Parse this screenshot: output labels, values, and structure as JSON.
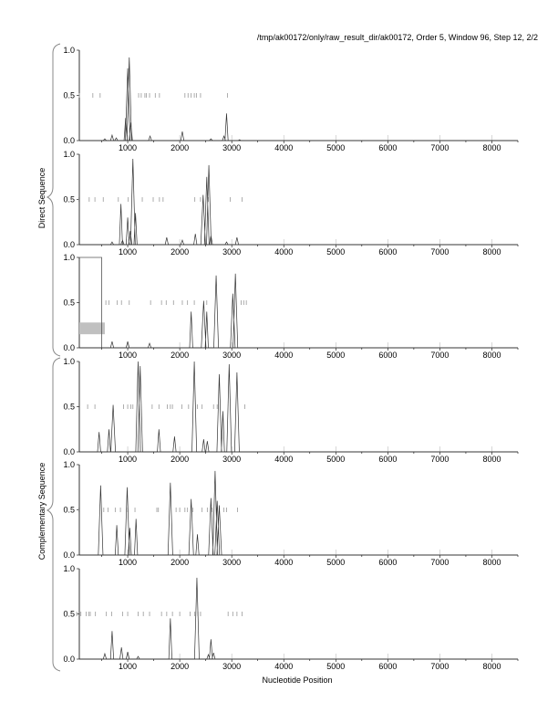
{
  "title": "/tmp/ak00172/only/raw_result_dir/ak00172, Order 5, Window 96, Step 12, 2/2",
  "group_labels": {
    "direct": "Direct Sequence",
    "complementary": "Complementary Sequence"
  },
  "chart_data": {
    "type": "line",
    "xlabel": "Nucleotide Position",
    "xlim": [
      0,
      8500
    ],
    "ylim": [
      0,
      1
    ],
    "x_ticks": [
      "1000",
      "2000",
      "3000",
      "4000",
      "5000",
      "6000",
      "7000",
      "8000"
    ],
    "y_ticks": [
      "0.0",
      "0.5",
      "1.0"
    ],
    "colors": {
      "line": "#333333",
      "ticks": "#999999",
      "gene_box": "#c0c0c0"
    },
    "panels": [
      {
        "group": "direct",
        "frame": 1,
        "peaks": [
          [
            560,
            0.02
          ],
          [
            700,
            0.06
          ],
          [
            780,
            0.03
          ],
          [
            960,
            0.25
          ],
          [
            1000,
            0.8
          ],
          [
            1030,
            0.92
          ],
          [
            1060,
            0.2
          ],
          [
            1430,
            0.05
          ],
          [
            2050,
            0.1
          ],
          [
            2600,
            0.02
          ],
          [
            2850,
            0.05
          ],
          [
            2900,
            0.3
          ],
          [
            3150,
            0.01
          ]
        ],
        "stops": [
          70,
          330,
          470,
          1210,
          1260,
          1330,
          1360,
          1420,
          1530,
          1610,
          2100,
          2160,
          2220,
          2280,
          2320,
          2400,
          2920
        ]
      },
      {
        "group": "direct",
        "frame": 2,
        "peaks": [
          [
            700,
            0.03
          ],
          [
            870,
            0.45
          ],
          [
            900,
            0.05
          ],
          [
            1000,
            0.3
          ],
          [
            1050,
            0.15
          ],
          [
            1100,
            0.95
          ],
          [
            1150,
            0.35
          ],
          [
            1750,
            0.08
          ],
          [
            2050,
            0.05
          ],
          [
            2300,
            0.12
          ],
          [
            2450,
            0.55
          ],
          [
            2520,
            0.75
          ],
          [
            2560,
            0.88
          ],
          [
            2600,
            0.1
          ],
          [
            2900,
            0.03
          ],
          [
            3100,
            0.08
          ]
        ],
        "stops": [
          60,
          260,
          370,
          530,
          820,
          1010,
          1280,
          1490,
          1610,
          1680,
          2290,
          2400,
          2550,
          2970,
          3200
        ]
      },
      {
        "group": "direct",
        "frame": 3,
        "gene_box": {
          "start": 0,
          "end": 500
        },
        "shaded_region": {
          "start": 0,
          "end": 560,
          "y_low": 0.15,
          "y_high": 0.28
        },
        "peaks": [
          [
            700,
            0.07
          ],
          [
            1000,
            0.07
          ],
          [
            1420,
            0.05
          ],
          [
            2220,
            0.4
          ],
          [
            2460,
            0.52
          ],
          [
            2520,
            0.4
          ],
          [
            2700,
            0.8
          ],
          [
            3020,
            0.6
          ],
          [
            3070,
            0.82
          ]
        ],
        "stops": [
          580,
          640,
          800,
          880,
          1030,
          1440,
          1650,
          1740,
          1880,
          2050,
          2150,
          2280,
          2520,
          3180,
          3230,
          3280
        ]
      },
      {
        "group": "complementary",
        "frame": 1,
        "peaks": [
          [
            450,
            0.22
          ],
          [
            640,
            0.25
          ],
          [
            720,
            0.52
          ],
          [
            1200,
            1.0
          ],
          [
            1240,
            0.95
          ],
          [
            1600,
            0.25
          ],
          [
            1900,
            0.17
          ],
          [
            2280,
            1.0
          ],
          [
            2460,
            0.14
          ],
          [
            2530,
            0.12
          ],
          [
            2760,
            0.86
          ],
          [
            2830,
            0.45
          ],
          [
            2950,
            0.97
          ],
          [
            3100,
            0.88
          ]
        ],
        "stops": [
          230,
          370,
          920,
          1000,
          1060,
          1100,
          1470,
          1600,
          1760,
          1820,
          1860,
          2040,
          2170,
          2340,
          2430,
          2650,
          2720,
          3250
        ]
      },
      {
        "group": "complementary",
        "frame": 2,
        "peaks": [
          [
            480,
            0.77
          ],
          [
            790,
            0.33
          ],
          [
            990,
            0.75
          ],
          [
            1040,
            0.3
          ],
          [
            1160,
            0.4
          ],
          [
            1820,
            0.8
          ],
          [
            2220,
            0.62
          ],
          [
            2340,
            0.23
          ],
          [
            2600,
            0.63
          ],
          [
            2680,
            0.93
          ],
          [
            2720,
            0.6
          ],
          [
            2760,
            0.55
          ]
        ],
        "stops": [
          60,
          540,
          620,
          760,
          860,
          1000,
          1140,
          1560,
          1590,
          1930,
          2000,
          2100,
          2150,
          2250,
          2430,
          2530,
          2620,
          2850,
          2900,
          3110
        ]
      },
      {
        "group": "complementary",
        "frame": 3,
        "peaks": [
          [
            560,
            0.06
          ],
          [
            700,
            0.31
          ],
          [
            880,
            0.13
          ],
          [
            1000,
            0.08
          ],
          [
            1200,
            0.03
          ],
          [
            1820,
            0.45
          ],
          [
            2330,
            0.9
          ],
          [
            2550,
            0.05
          ],
          [
            2600,
            0.22
          ],
          [
            2650,
            0.07
          ]
        ],
        "stops": [
          20,
          100,
          200,
          250,
          280,
          380,
          590,
          690,
          900,
          1000,
          1200,
          1300,
          1420,
          1650,
          1750,
          1860,
          2000,
          2200,
          2290,
          2350,
          2400,
          2930,
          3020,
          3100,
          3200
        ]
      }
    ]
  }
}
